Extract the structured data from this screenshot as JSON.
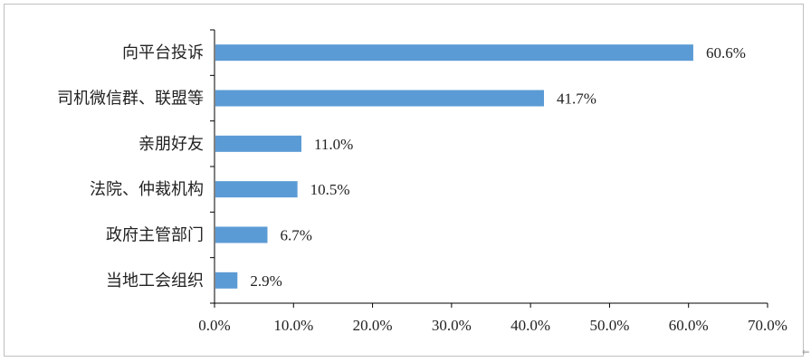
{
  "chart_data": {
    "type": "bar",
    "orientation": "horizontal",
    "categories": [
      "向平台投诉",
      "司机微信群、联盟等",
      "亲朋好友",
      "法院、仲裁机构",
      "政府主管部门",
      "当地工会组织"
    ],
    "values": [
      60.6,
      41.7,
      11.0,
      10.5,
      6.7,
      2.9
    ],
    "value_labels": [
      "60.6%",
      "41.7%",
      "11.0%",
      "10.5%",
      "6.7%",
      "2.9%"
    ],
    "x_ticks": [
      "0.0%",
      "10.0%",
      "20.0%",
      "30.0%",
      "40.0%",
      "50.0%",
      "60.0%",
      "70.0%"
    ],
    "xlim": [
      0,
      70
    ],
    "grid": false,
    "legend": "none",
    "bar_color": "#5b9bd5",
    "title": "",
    "xlabel": "",
    "ylabel": ""
  },
  "corner_glyph": "⇐"
}
